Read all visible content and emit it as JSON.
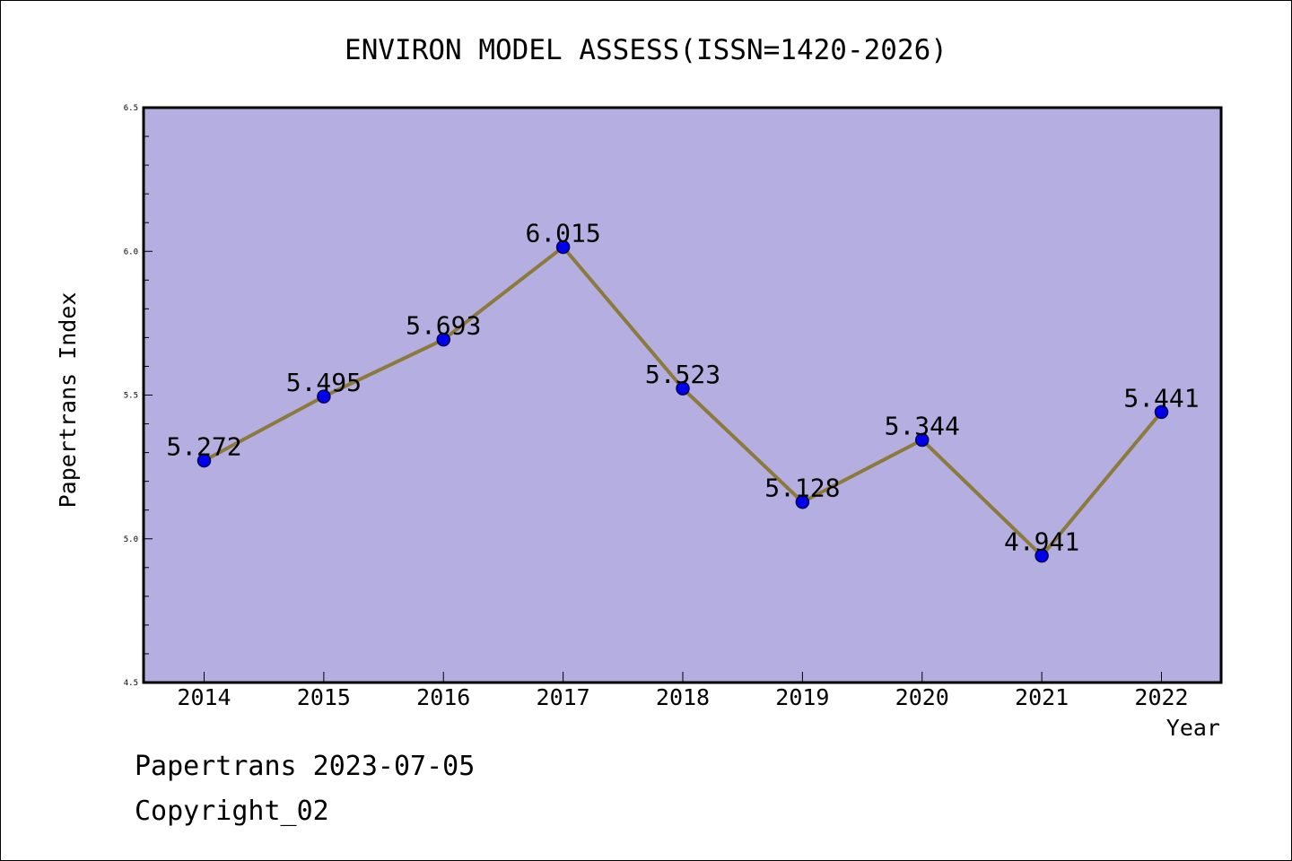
{
  "chart_data": {
    "type": "line",
    "title": "ENVIRON MODEL ASSESS(ISSN=1420-2026)",
    "xlabel": "Year",
    "ylabel": "Papertrans Index",
    "categories": [
      "2014",
      "2015",
      "2016",
      "2017",
      "2018",
      "2019",
      "2020",
      "2021",
      "2022"
    ],
    "series": [
      {
        "values": [
          5.272,
          5.495,
          5.693,
          6.015,
          5.523,
          5.128,
          5.344,
          4.941,
          5.441
        ]
      }
    ],
    "data_labels": [
      "5.272",
      "5.495",
      "5.693",
      "6.015",
      "5.523",
      "5.128",
      "5.344",
      "4.941",
      "5.441"
    ],
    "ylim": [
      4.5,
      6.5
    ],
    "y_ticks": [
      "4.5",
      "5.0",
      "5.5",
      "6.0",
      "6.5"
    ],
    "colors": {
      "plot_background": "#b5aee0",
      "line": "#8c7a3c",
      "marker": "#0000ee"
    },
    "grid": false
  },
  "footer": {
    "line1": "Papertrans 2023-07-05",
    "line2": "Copyright_02"
  }
}
